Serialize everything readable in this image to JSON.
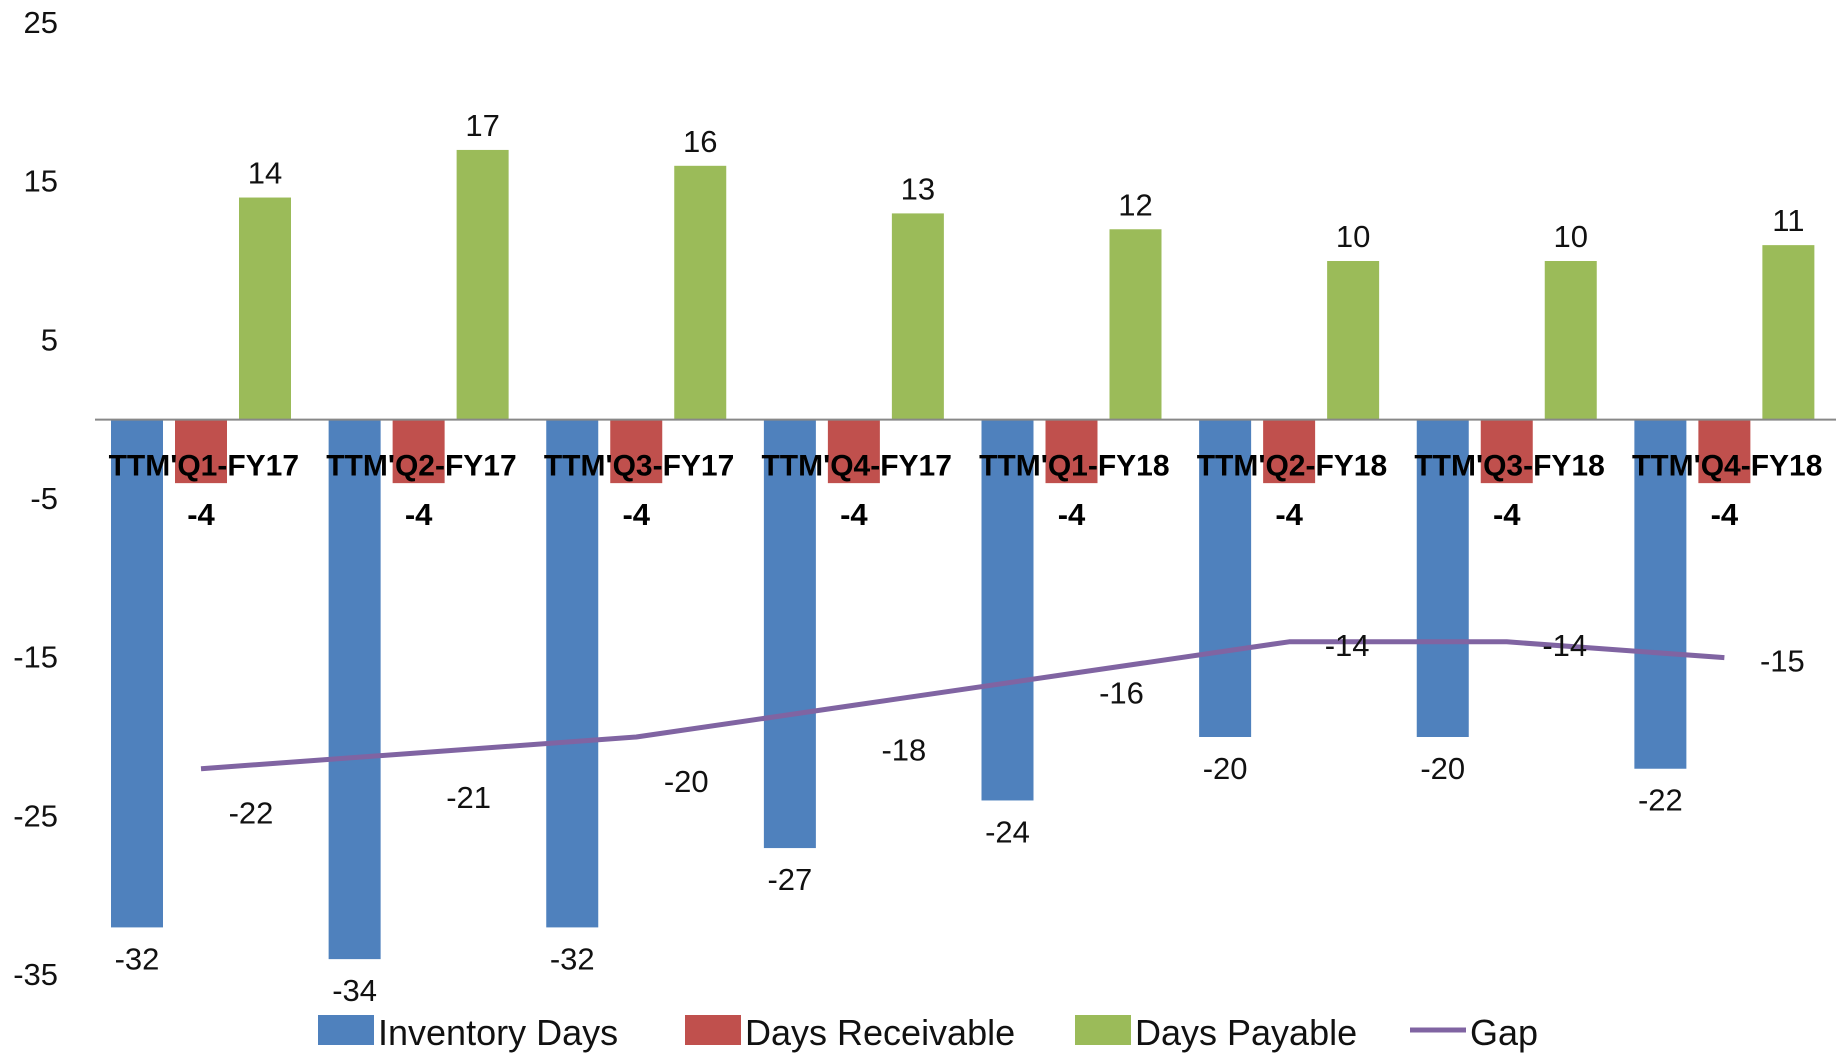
{
  "chart_data": {
    "type": "bar",
    "categories": [
      "TTM'Q1-FY17",
      "TTM'Q2-FY17",
      "TTM'Q3-FY17",
      "TTM'Q4-FY17",
      "TTM'Q1-FY18",
      "TTM'Q2-FY18",
      "TTM'Q3-FY18",
      "TTM'Q4-FY18"
    ],
    "series": [
      {
        "name": "Inventory Days",
        "type": "bar",
        "color": "#4F81BD",
        "values": [
          -32,
          -34,
          -32,
          -27,
          -24,
          -20,
          -20,
          -22
        ]
      },
      {
        "name": "Days Receivable",
        "type": "bar",
        "color": "#C0504D",
        "values": [
          -4,
          -4,
          -4,
          -4,
          -4,
          -4,
          -4,
          -4
        ]
      },
      {
        "name": "Days Payable",
        "type": "bar",
        "color": "#9BBB59",
        "values": [
          14,
          17,
          16,
          13,
          12,
          10,
          10,
          11
        ]
      },
      {
        "name": "Gap",
        "type": "line",
        "color": "#8064A2",
        "values": [
          -22,
          -21,
          -20,
          -18,
          -16,
          -14,
          -14,
          -15
        ]
      }
    ],
    "yticks": [
      "25",
      "15",
      "5",
      "-5",
      "-15",
      "-25",
      "-35"
    ],
    "ylim": [
      -35,
      25
    ],
    "grid": false,
    "legend_position": "bottom"
  }
}
